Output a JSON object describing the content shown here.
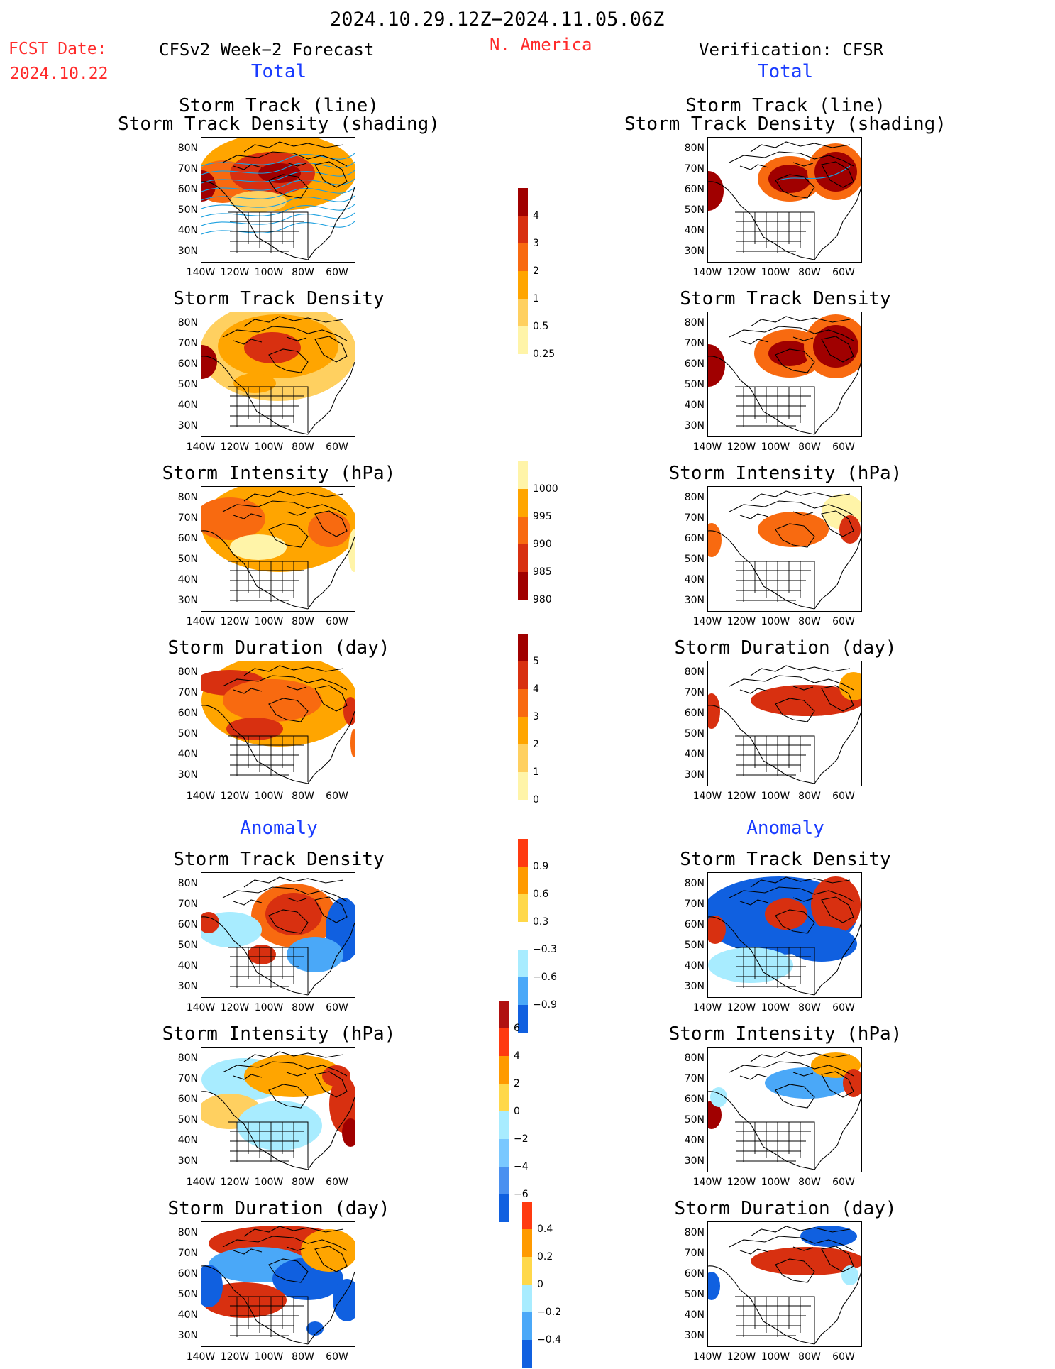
{
  "header": {
    "period": "2024.10.29.12Z−2024.11.05.06Z",
    "region": "N. America",
    "fcst_label": "FCST Date:",
    "fcst_date": "2024.10.22",
    "left_model": "CFSv2 Week−2 Forecast",
    "right_model": "Verification: CFSR"
  },
  "sections": {
    "total": "Total",
    "anomaly": "Anomaly"
  },
  "panel_titles": {
    "track_line": "Storm Track (line)",
    "track_shading": "Storm Track Density (shading)",
    "density": "Storm Track Density",
    "intensity": "Storm Intensity (hPa)",
    "duration": "Storm Duration (day)"
  },
  "axes": {
    "lat_labels": [
      "80N",
      "70N",
      "60N",
      "50N",
      "40N",
      "30N"
    ],
    "lon_labels": [
      "140W",
      "120W",
      "100W",
      "80W",
      "60W"
    ]
  },
  "colorbars": [
    {
      "id": "density_total",
      "ticks": [
        "4",
        "3",
        "2",
        "1",
        "0.5",
        "0.25"
      ],
      "colors": [
        "#a00000",
        "#d83010",
        "#f86a10",
        "#ffa500",
        "#ffd060",
        "#fff4a8"
      ]
    },
    {
      "id": "intensity_total",
      "ticks": [
        "1000",
        "995",
        "990",
        "985",
        "980"
      ],
      "colors": [
        "#fff4a8",
        "#ffa500",
        "#f86a10",
        "#d83010",
        "#a00000"
      ]
    },
    {
      "id": "duration_total",
      "ticks": [
        "5",
        "4",
        "3",
        "2",
        "1",
        "0"
      ],
      "colors": [
        "#a00000",
        "#d83010",
        "#f86a10",
        "#ffa500",
        "#ffd060",
        "#fff4a8"
      ]
    },
    {
      "id": "density_anom",
      "ticks": [
        "0.9",
        "0.6",
        "0.3",
        "−0.3",
        "−0.6",
        "−0.9"
      ],
      "colors": [
        "#ff3a10",
        "#ff9a00",
        "#ffd84a",
        "#ffffff",
        "#a8ecff",
        "#4aa8f8",
        "#1060e0"
      ]
    },
    {
      "id": "intensity_anom",
      "ticks": [
        "6",
        "4",
        "2",
        "0",
        "−2",
        "−4",
        "−6"
      ],
      "colors": [
        "#b01010",
        "#ff3a10",
        "#ff9a00",
        "#ffd84a",
        "#a8ecff",
        "#7ac8ff",
        "#4a90f0",
        "#1060e0"
      ]
    },
    {
      "id": "duration_anom",
      "ticks": [
        "0.4",
        "0.2",
        "0",
        "−0.2",
        "−0.4"
      ],
      "colors": [
        "#ff3a10",
        "#ff9a00",
        "#ffd84a",
        "#a8ecff",
        "#4aa8f8",
        "#1060e0"
      ]
    }
  ],
  "colors": {
    "dark_red": "#a00000",
    "red": "#d83010",
    "orange": "#f86a10",
    "amber": "#ffa500",
    "light_orange": "#ffd060",
    "pale_yellow": "#fff4a8",
    "light_blue": "#a8ecff",
    "mid_blue": "#4aa8f8",
    "deep_blue": "#1060e0",
    "track_line": "#1ca0e0"
  }
}
